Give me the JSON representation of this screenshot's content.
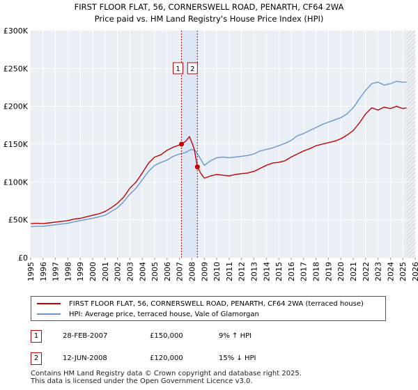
{
  "chart_data": {
    "type": "line",
    "title": "FIRST FLOOR FLAT, 56, CORNERSWELL ROAD, PENARTH, CF64 2WA",
    "subtitle": "Price paid vs. HM Land Registry's House Price Index (HPI)",
    "xlim": [
      1995,
      2026
    ],
    "ylim": [
      0,
      300000
    ],
    "x_ticks": [
      "1995",
      "1996",
      "1997",
      "1998",
      "1999",
      "2000",
      "2001",
      "2002",
      "2003",
      "2004",
      "2005",
      "2006",
      "2007",
      "2008",
      "2009",
      "2010",
      "2011",
      "2012",
      "2013",
      "2014",
      "2015",
      "2016",
      "2017",
      "2018",
      "2019",
      "2020",
      "2021",
      "2022",
      "2023",
      "2024",
      "2025",
      "2026"
    ],
    "y_ticks": [
      {
        "value": 0,
        "label": "£0"
      },
      {
        "value": 50000,
        "label": "£50K"
      },
      {
        "value": 100000,
        "label": "£100K"
      },
      {
        "value": 150000,
        "label": "£150K"
      },
      {
        "value": 200000,
        "label": "£200K"
      },
      {
        "value": 250000,
        "label": "£250K"
      },
      {
        "value": 300000,
        "label": "£300K"
      }
    ],
    "grid": true,
    "series": [
      {
        "name": "FIRST FLOOR FLAT, 56, CORNERSWELL ROAD, PENARTH, CF64 2WA (terraced house)",
        "color": "#c00000",
        "x": [
          1995,
          1995.5,
          1996,
          1996.5,
          1997,
          1997.5,
          1998,
          1998.5,
          1999,
          1999.5,
          2000,
          2000.5,
          2001,
          2001.5,
          2002,
          2002.5,
          2003,
          2003.5,
          2004,
          2004.5,
          2005,
          2005.5,
          2006,
          2006.5,
          2007,
          2007.16,
          2007.5,
          2007.8,
          2008,
          2008.2,
          2008.44,
          2008.7,
          2009,
          2009.5,
          2010,
          2010.5,
          2011,
          2011.5,
          2012,
          2012.5,
          2013,
          2013.5,
          2014,
          2014.5,
          2015,
          2015.5,
          2016,
          2016.5,
          2017,
          2017.5,
          2018,
          2018.5,
          2019,
          2019.5,
          2020,
          2020.5,
          2021,
          2021.5,
          2022,
          2022.5,
          2023,
          2023.5,
          2024,
          2024.5,
          2025,
          2025.3
        ],
        "values": [
          45000,
          45500,
          45000,
          46000,
          47000,
          48000,
          49000,
          51000,
          52000,
          54000,
          56000,
          58000,
          61000,
          66000,
          72000,
          80000,
          92000,
          100000,
          112000,
          125000,
          133000,
          136000,
          142000,
          146000,
          149000,
          150000,
          154000,
          160000,
          152000,
          143000,
          120000,
          112000,
          105000,
          108000,
          110000,
          109000,
          108000,
          110000,
          111000,
          112000,
          114000,
          118000,
          122000,
          125000,
          126000,
          128000,
          133000,
          137000,
          141000,
          144000,
          148000,
          150000,
          152000,
          154000,
          157000,
          162000,
          168000,
          178000,
          190000,
          198000,
          195000,
          199000,
          197000,
          200000,
          197000,
          198000
        ]
      },
      {
        "name": "HPI: Average price, terraced house, Vale of Glamorgan",
        "color": "#6a96cf",
        "x": [
          1995,
          1995.5,
          1996,
          1996.5,
          1997,
          1997.5,
          1998,
          1998.5,
          1999,
          1999.5,
          2000,
          2000.5,
          2001,
          2001.5,
          2002,
          2002.5,
          2003,
          2003.5,
          2004,
          2004.5,
          2005,
          2005.5,
          2006,
          2006.5,
          2007,
          2007.5,
          2007.8,
          2008,
          2008.3,
          2008.6,
          2009,
          2009.5,
          2010,
          2010.5,
          2011,
          2011.5,
          2012,
          2012.5,
          2013,
          2013.5,
          2014,
          2014.5,
          2015,
          2015.5,
          2016,
          2016.5,
          2017,
          2017.5,
          2018,
          2018.5,
          2019,
          2019.5,
          2020,
          2020.5,
          2021,
          2021.5,
          2022,
          2022.5,
          2023,
          2023.5,
          2024,
          2024.5,
          2025,
          2025.3
        ],
        "values": [
          41000,
          41500,
          41500,
          42500,
          43500,
          44500,
          45500,
          47500,
          49000,
          50500,
          52000,
          54000,
          56000,
          61000,
          66000,
          74000,
          84000,
          92000,
          103000,
          114000,
          122000,
          126000,
          129000,
          134000,
          137000,
          139000,
          142000,
          143000,
          141000,
          133000,
          122000,
          128000,
          132000,
          133000,
          132000,
          133000,
          134000,
          135000,
          137000,
          141000,
          143000,
          145000,
          148000,
          151000,
          155000,
          161000,
          164000,
          168000,
          172000,
          176000,
          179000,
          182000,
          185000,
          190000,
          198000,
          210000,
          221000,
          230000,
          232000,
          228000,
          230000,
          233000,
          232000,
          232000
        ]
      }
    ],
    "annotations": [
      {
        "label": "1",
        "x": 2007.16,
        "y": 150000,
        "color": "#c00000"
      },
      {
        "label": "2",
        "x": 2008.44,
        "y": 120000,
        "color": "#c00000"
      }
    ],
    "shaded_span": [
      2007.16,
      2008.44
    ],
    "hatched_from": 2025.3
  },
  "legend": [
    {
      "label": "FIRST FLOOR FLAT, 56, CORNERSWELL ROAD, PENARTH, CF64 2WA (terraced house)",
      "color": "#c00000"
    },
    {
      "label": "HPI: Average price, terraced house, Vale of Glamorgan",
      "color": "#6a96cf"
    }
  ],
  "events": [
    {
      "num": "1",
      "date": "28-FEB-2007",
      "price": "£150,000",
      "hpi": "9% ↑ HPI"
    },
    {
      "num": "2",
      "date": "12-JUN-2008",
      "price": "£120,000",
      "hpi": "15% ↓ HPI"
    }
  ],
  "footer": {
    "line1": "Contains HM Land Registry data © Crown copyright and database right 2025.",
    "line2": "This data is licensed under the Open Government Licence v3.0."
  }
}
